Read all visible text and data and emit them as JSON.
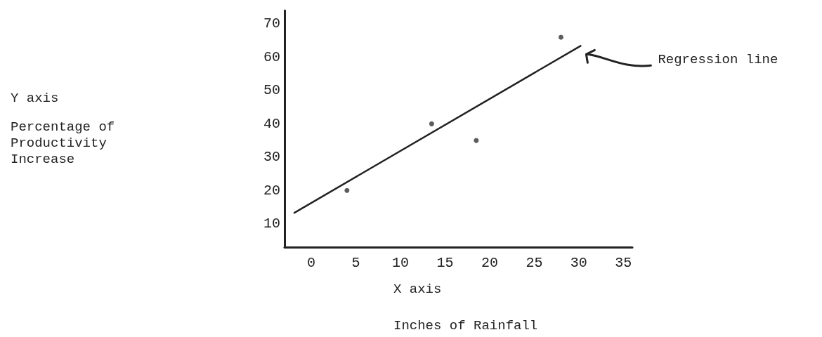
{
  "chart_data": {
    "type": "scatter",
    "xlabel": "X axis\nInches of Rainfall",
    "annotations": [
      "Y axis\nPercentage of\nProductivity\nIncrease",
      "Regression line"
    ],
    "series": [
      {
        "color": "#333333",
        "x": [
          4,
          13.5,
          18.5,
          28
        ],
        "values": [
          20,
          40,
          35,
          66
        ],
        "marker": "circle"
      },
      {
        "type": "line",
        "color": "#222222",
        "x": [
          -1.9,
          30.2
        ],
        "values": [
          13.3,
          63.4
        ],
        "marker": "none",
        "line_style": "solid"
      }
    ],
    "xlim": [
      -3,
      36
    ],
    "xticks": [
      0,
      5,
      10,
      15,
      20,
      25,
      30,
      35
    ],
    "ylim": [
      3,
      74
    ],
    "yticks": [
      10,
      20,
      30,
      40,
      50,
      60,
      70
    ],
    "grid": false
  }
}
